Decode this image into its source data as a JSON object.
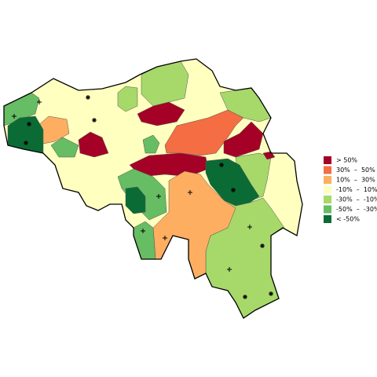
{
  "legend": {
    "items": [
      {
        "label": "> 50%",
        "color": "#a50026"
      },
      {
        "label": "30%  –  50%",
        "color": "#f46d43"
      },
      {
        "label": "10%  –  30%",
        "color": "#fdae61"
      },
      {
        "label": "-10%  –  10%",
        "color": "#ffffbf"
      },
      {
        "label": "-30%  –  -10%",
        "color": "#a6d96a"
      },
      {
        "label": "-50%  –  -30%",
        "color": "#66bd63"
      },
      {
        "label": "< -50%",
        "color": "#0b6b35"
      }
    ]
  }
}
